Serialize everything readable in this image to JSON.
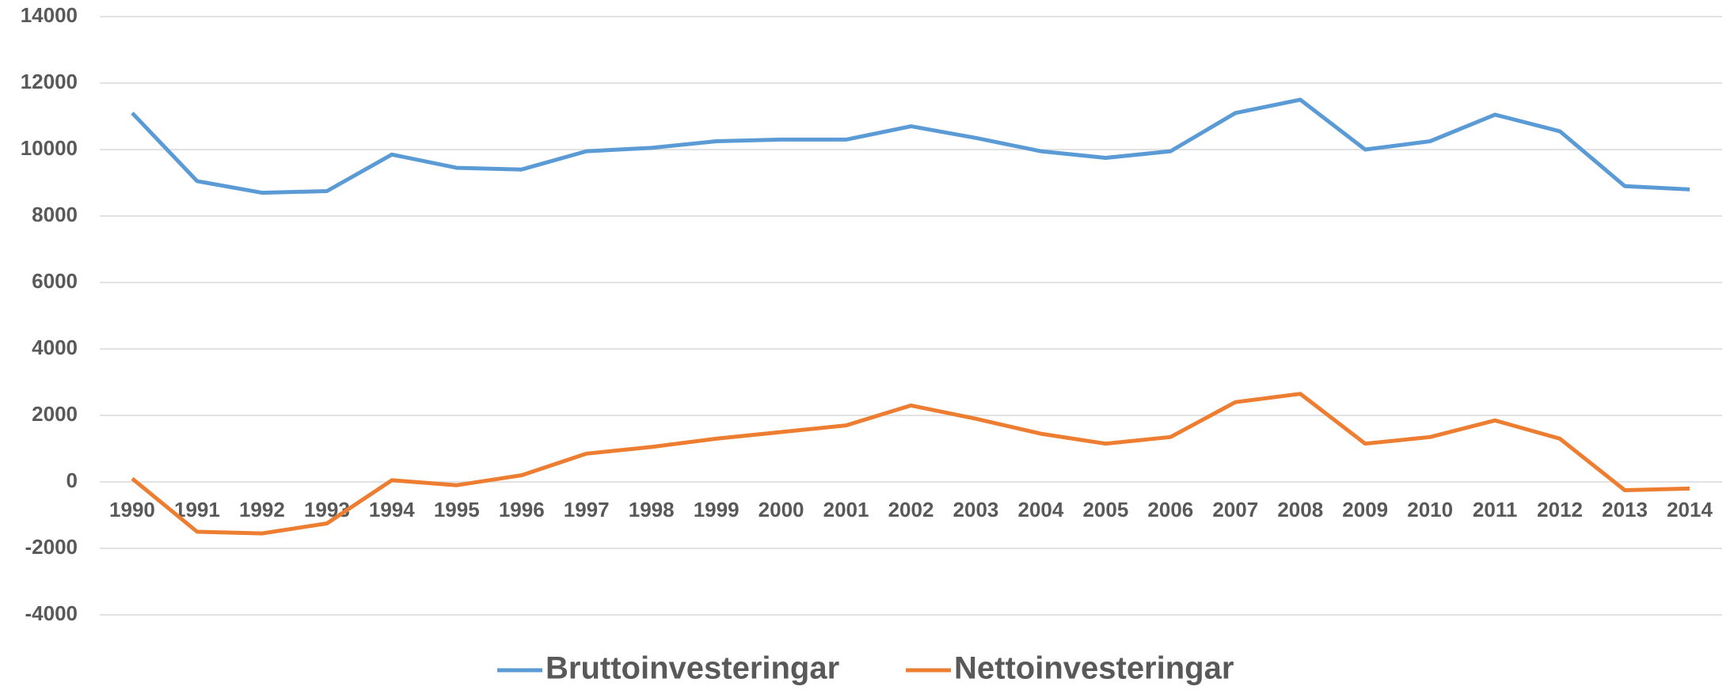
{
  "chart_data": {
    "type": "line",
    "categories": [
      "1990",
      "1991",
      "1992",
      "1993",
      "1994",
      "1995",
      "1996",
      "1997",
      "1998",
      "1999",
      "2000",
      "2001",
      "2002",
      "2003",
      "2004",
      "2005",
      "2006",
      "2007",
      "2008",
      "2009",
      "2010",
      "2011",
      "2012",
      "2013",
      "2014"
    ],
    "series": [
      {
        "name": "Bruttoinvesteringar",
        "color": "#5b9bd5",
        "values": [
          11100,
          9050,
          8700,
          8750,
          9850,
          9450,
          9400,
          9950,
          10050,
          10250,
          10300,
          10300,
          10700,
          10350,
          9950,
          9750,
          9950,
          11100,
          11500,
          10000,
          10250,
          11050,
          10550,
          8900,
          8800
        ]
      },
      {
        "name": "Nettoinvesteringar",
        "color": "#ed7d31",
        "values": [
          100,
          -1500,
          -1550,
          -1250,
          50,
          -100,
          200,
          850,
          1050,
          1300,
          1500,
          1700,
          2300,
          1900,
          1450,
          1150,
          1350,
          2400,
          2650,
          1150,
          1350,
          1850,
          1300,
          -250,
          -200
        ]
      }
    ],
    "ylim": [
      -4000,
      14000
    ],
    "yticks": [
      -4000,
      -2000,
      0,
      2000,
      4000,
      6000,
      8000,
      10000,
      12000,
      14000
    ],
    "grid": true,
    "legend": "bottom"
  }
}
